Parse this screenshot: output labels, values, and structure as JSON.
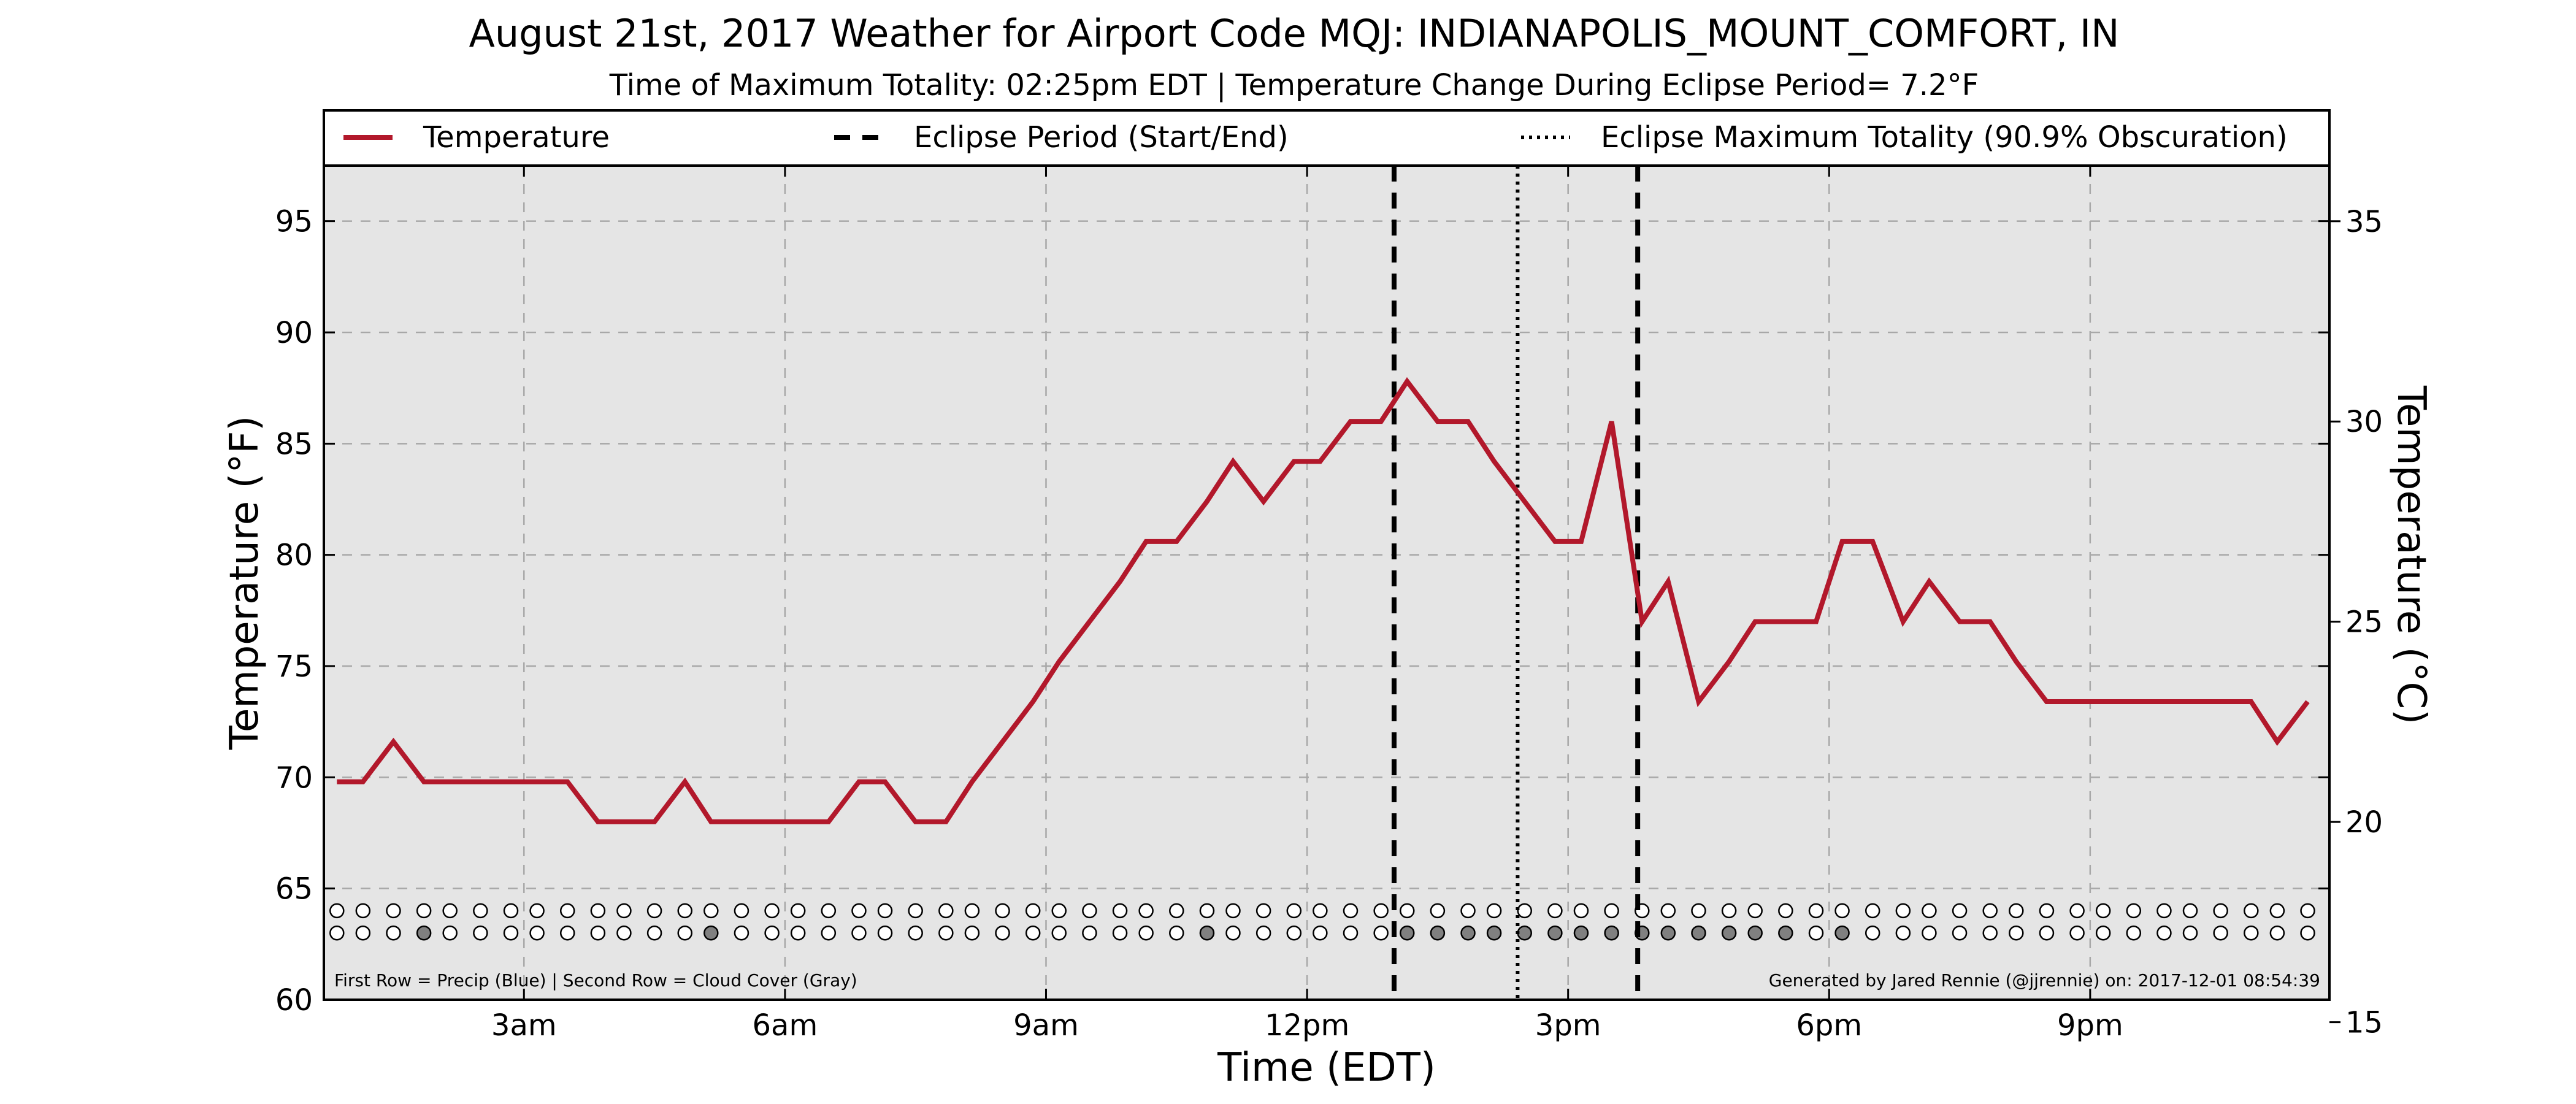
{
  "chart_data": {
    "type": "line",
    "title": "August 21st, 2017 Weather for Airport Code MQJ: INDIANAPOLIS_MOUNT_COMFORT, IN",
    "subtitle": "Time of Maximum Totality: 02:25pm EDT | Temperature Change During Eclipse Period= 7.2°F",
    "xlabel": "Time (EDT)",
    "ylabel_left": "Temperature (°F)",
    "ylabel_right": "Temperature (°C)",
    "xlim": [
      0.7,
      23.75
    ],
    "ylim": [
      60,
      97.5
    ],
    "ylim_c": [
      15.56,
      36.39
    ],
    "grid": true,
    "legend_position": "top",
    "x_ticks": [
      {
        "x": 3,
        "label": "3am"
      },
      {
        "x": 6,
        "label": "6am"
      },
      {
        "x": 9,
        "label": "9am"
      },
      {
        "x": 12,
        "label": "12pm"
      },
      {
        "x": 15,
        "label": "3pm"
      },
      {
        "x": 18,
        "label": "6pm"
      },
      {
        "x": 21,
        "label": "9pm"
      }
    ],
    "y_ticks": [
      60,
      65,
      70,
      75,
      80,
      85,
      90,
      95
    ],
    "y_ticks_c": [
      15,
      20,
      25,
      30,
      35
    ],
    "legend": [
      {
        "label": "Temperature",
        "style": "solid"
      },
      {
        "label": "Eclipse Period (Start/End)",
        "style": "dashed"
      },
      {
        "label": "Eclipse Maximum Totality (90.9% Obscuration)",
        "style": "dotted"
      }
    ],
    "series": [
      {
        "name": "Temperature",
        "color": "#b2182b",
        "x": [
          0.85,
          1.15,
          1.5,
          1.85,
          2.15,
          2.5,
          2.85,
          3.15,
          3.5,
          3.85,
          4.15,
          4.5,
          4.85,
          5.15,
          5.5,
          5.85,
          6.15,
          6.5,
          6.85,
          7.15,
          7.5,
          7.85,
          8.15,
          8.5,
          8.85,
          9.15,
          9.5,
          9.85,
          10.15,
          10.5,
          10.85,
          11.15,
          11.5,
          11.85,
          12.15,
          12.5,
          12.85,
          13.15,
          13.5,
          13.85,
          14.15,
          14.5,
          14.85,
          15.15,
          15.5,
          15.85,
          16.15,
          16.5,
          16.85,
          17.15,
          17.5,
          17.85,
          18.15,
          18.5,
          18.85,
          19.15,
          19.5,
          19.85,
          20.15,
          20.5,
          20.85,
          21.15,
          21.5,
          21.85,
          22.15,
          22.5,
          22.85,
          23.15,
          23.5
        ],
        "y": [
          69.8,
          69.8,
          71.6,
          69.8,
          69.8,
          69.8,
          69.8,
          69.8,
          69.8,
          68.0,
          68.0,
          68.0,
          69.8,
          68.0,
          68.0,
          68.0,
          68.0,
          68.0,
          69.8,
          69.8,
          68.0,
          68.0,
          69.8,
          71.6,
          73.4,
          75.2,
          77.0,
          78.8,
          80.6,
          80.6,
          82.4,
          84.2,
          82.4,
          84.2,
          84.2,
          86.0,
          86.0,
          87.8,
          86.0,
          86.0,
          84.2,
          82.4,
          80.6,
          80.6,
          86.0,
          77.0,
          78.8,
          73.4,
          75.2,
          77.0,
          77.0,
          77.0,
          80.6,
          80.6,
          77.0,
          78.8,
          77.0,
          77.0,
          75.2,
          73.4,
          73.4,
          73.4,
          73.4,
          73.4,
          73.4,
          73.4,
          73.4,
          71.6,
          73.4
        ]
      }
    ],
    "eclipse_start": 13.0,
    "eclipse_end": 15.8,
    "eclipse_max": 14.42,
    "obs_rows": {
      "y_row1": 64.0,
      "y_row2": 63.0,
      "x": [
        0.85,
        1.15,
        1.5,
        1.85,
        2.15,
        2.5,
        2.85,
        3.15,
        3.5,
        3.85,
        4.15,
        4.5,
        4.85,
        5.15,
        5.5,
        5.85,
        6.15,
        6.5,
        6.85,
        7.15,
        7.5,
        7.85,
        8.15,
        8.5,
        8.85,
        9.15,
        9.5,
        9.85,
        10.15,
        10.5,
        10.85,
        11.15,
        11.5,
        11.85,
        12.15,
        12.5,
        12.85,
        13.15,
        13.5,
        13.85,
        14.15,
        14.5,
        14.85,
        15.15,
        15.5,
        15.85,
        16.15,
        16.5,
        16.85,
        17.15,
        17.5,
        17.85,
        18.15,
        18.5,
        18.85,
        19.15,
        19.5,
        19.85,
        20.15,
        20.5,
        20.85,
        21.15,
        21.5,
        21.85,
        22.15,
        22.5,
        22.85,
        23.15,
        23.5
      ],
      "cloud_gray": [
        3,
        13,
        30,
        37,
        38,
        39,
        40,
        41,
        42,
        43,
        44,
        45,
        46,
        47,
        48,
        49,
        50,
        52
      ],
      "gray_color": "#808080"
    },
    "footnote_left": "First Row = Precip (Blue) | Second Row = Cloud Cover (Gray)",
    "footnote_right": "Generated by Jared Rennie (@jjrennie) on: 2017-12-01 08:54:39"
  },
  "colors": {
    "plot_bg": "#e5e5e5",
    "line": "#b2182b",
    "grid": "#a8a8a8"
  }
}
